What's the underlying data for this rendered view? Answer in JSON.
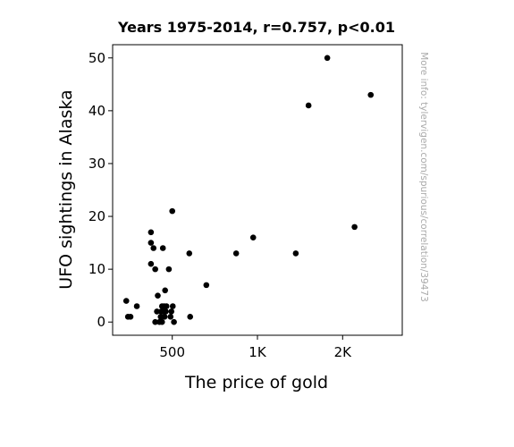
{
  "chart_data": {
    "type": "scatter",
    "title": "Years 1975-2014, r=0.757, p<0.01",
    "xlabel": "The price of gold",
    "ylabel": "UFO sightings in Alaska",
    "side_note": "More info: tylervigen.com/spurious/correlation/39473",
    "x_scale": "linear",
    "xlim": [
      150,
      1850
    ],
    "ylim": [
      -2.5,
      52.5
    ],
    "xticks": [
      {
        "value": 500,
        "label": "500"
      },
      {
        "value": 1000,
        "label": "1K"
      },
      {
        "value": 1500,
        "label": "2K"
      }
    ],
    "yticks": [
      0,
      10,
      20,
      30,
      40,
      50
    ],
    "grid": false,
    "marker_color": "#000000",
    "points": [
      {
        "x": 230,
        "y": 4
      },
      {
        "x": 240,
        "y": 1
      },
      {
        "x": 255,
        "y": 1
      },
      {
        "x": 292,
        "y": 3
      },
      {
        "x": 375,
        "y": 17
      },
      {
        "x": 375,
        "y": 15
      },
      {
        "x": 375,
        "y": 11
      },
      {
        "x": 390,
        "y": 14
      },
      {
        "x": 400,
        "y": 10
      },
      {
        "x": 400,
        "y": 0
      },
      {
        "x": 410,
        "y": 2
      },
      {
        "x": 415,
        "y": 5
      },
      {
        "x": 425,
        "y": 0
      },
      {
        "x": 432,
        "y": 1
      },
      {
        "x": 435,
        "y": 2
      },
      {
        "x": 440,
        "y": 3
      },
      {
        "x": 440,
        "y": 0
      },
      {
        "x": 445,
        "y": 14
      },
      {
        "x": 448,
        "y": 2
      },
      {
        "x": 452,
        "y": 3
      },
      {
        "x": 455,
        "y": 1
      },
      {
        "x": 458,
        "y": 6
      },
      {
        "x": 462,
        "y": 2
      },
      {
        "x": 466,
        "y": 3
      },
      {
        "x": 480,
        "y": 10
      },
      {
        "x": 490,
        "y": 1
      },
      {
        "x": 495,
        "y": 2
      },
      {
        "x": 503,
        "y": 3
      },
      {
        "x": 500,
        "y": 21
      },
      {
        "x": 510,
        "y": 0
      },
      {
        "x": 600,
        "y": 13
      },
      {
        "x": 605,
        "y": 1
      },
      {
        "x": 700,
        "y": 7
      },
      {
        "x": 875,
        "y": 13
      },
      {
        "x": 975,
        "y": 16
      },
      {
        "x": 1225,
        "y": 13
      },
      {
        "x": 1300,
        "y": 41
      },
      {
        "x": 1410,
        "y": 50
      },
      {
        "x": 1570,
        "y": 18
      },
      {
        "x": 1665,
        "y": 43
      }
    ]
  }
}
